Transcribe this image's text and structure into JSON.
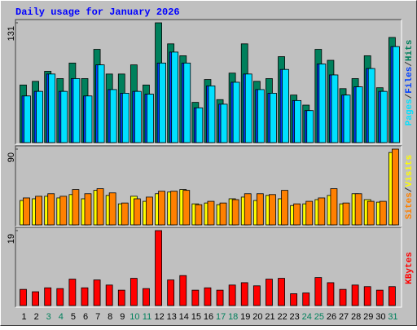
{
  "chart_data": [
    {
      "type": "bar",
      "title": "Daily usage for January 2026",
      "series": [
        {
          "name": "Hits",
          "color": "#00805c",
          "values": [
            63,
            67,
            78,
            70,
            87,
            70,
            102,
            75,
            75,
            85,
            63,
            131,
            108,
            95,
            44,
            69,
            47,
            76,
            108,
            67,
            70,
            94,
            52,
            41,
            102,
            90,
            59,
            70,
            95,
            60,
            115
          ]
        },
        {
          "name": "Files",
          "color": "#0040ff",
          "values": [
            51,
            56,
            75,
            56,
            70,
            51,
            85,
            58,
            54,
            56,
            53,
            87,
            99,
            87,
            38,
            62,
            42,
            66,
            75,
            58,
            54,
            80,
            46,
            35,
            86,
            74,
            52,
            61,
            81,
            56,
            105
          ]
        },
        {
          "name": "Pages",
          "color": "#00e0ff",
          "values": [
            51,
            56,
            75,
            56,
            70,
            51,
            85,
            58,
            54,
            56,
            53,
            87,
            99,
            87,
            38,
            62,
            42,
            66,
            75,
            58,
            54,
            80,
            46,
            35,
            86,
            74,
            52,
            61,
            81,
            56,
            105
          ]
        }
      ],
      "legend_separator": "/",
      "ylim": [
        0,
        131
      ],
      "yticks": [
        131
      ]
    },
    {
      "type": "bar",
      "series": [
        {
          "name": "Visits",
          "color": "#ffff00",
          "values": [
            29,
            31,
            34,
            32,
            36,
            31,
            41,
            35,
            25,
            34,
            28,
            37,
            39,
            42,
            25,
            26,
            24,
            31,
            33,
            29,
            35,
            31,
            23,
            25,
            30,
            35,
            25,
            37,
            30,
            27,
            86
          ]
        },
        {
          "name": "Sites",
          "color": "#ff8000",
          "values": [
            32,
            34,
            37,
            34,
            42,
            37,
            43,
            38,
            26,
            31,
            33,
            40,
            40,
            41,
            24,
            28,
            26,
            30,
            37,
            37,
            36,
            41,
            25,
            28,
            32,
            43,
            26,
            37,
            28,
            28,
            90
          ]
        }
      ],
      "legend_separator": "/",
      "ylim": [
        0,
        90
      ],
      "yticks": [
        90
      ]
    },
    {
      "type": "bar",
      "categories": [
        "1",
        "2",
        "3",
        "4",
        "5",
        "6",
        "7",
        "8",
        "9",
        "10",
        "11",
        "12",
        "13",
        "14",
        "15",
        "16",
        "17",
        "18",
        "19",
        "20",
        "21",
        "22",
        "23",
        "24",
        "25",
        "26",
        "27",
        "28",
        "29",
        "30",
        "31"
      ],
      "label_colors": [
        "#000000",
        "#000000",
        "#00805c",
        "#00805c",
        "#000000",
        "#000000",
        "#000000",
        "#000000",
        "#000000",
        "#00805c",
        "#00805c",
        "#000000",
        "#000000",
        "#000000",
        "#000000",
        "#000000",
        "#00805c",
        "#00805c",
        "#000000",
        "#000000",
        "#000000",
        "#000000",
        "#000000",
        "#00805c",
        "#00805c",
        "#000000",
        "#000000",
        "#000000",
        "#000000",
        "#000000",
        "#00805c"
      ],
      "series": [
        {
          "name": "KBytes",
          "color": "#ff0000",
          "values": [
            4.1,
            3.5,
            4.5,
            4.3,
            6.7,
            4.5,
            6.5,
            5.2,
            3.9,
            6.9,
            4.3,
            19,
            6.5,
            7.6,
            3.9,
            4.5,
            3.9,
            5.2,
            5.8,
            5,
            6.7,
            6.9,
            3,
            3.2,
            7.1,
            5.8,
            4.1,
            5.2,
            4.8,
            3.9,
            4.8
          ]
        }
      ],
      "ylim": [
        0,
        19
      ],
      "yticks": [
        19
      ]
    }
  ]
}
